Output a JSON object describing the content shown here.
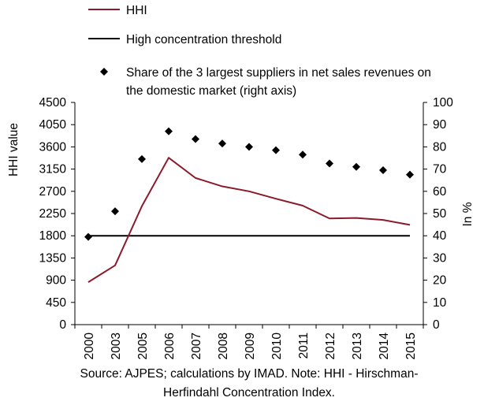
{
  "chart_data": {
    "type": "line",
    "title": "",
    "categories": [
      "2000",
      "2003",
      "2005",
      "2006",
      "2007",
      "2008",
      "2009",
      "2010",
      "2011",
      "2012",
      "2013",
      "2014",
      "2015"
    ],
    "series": [
      {
        "name": "HHI",
        "axis": "left",
        "kind": "line",
        "color": "#8b1a2b",
        "values": [
          860,
          1200,
          2400,
          3380,
          2970,
          2800,
          2700,
          2550,
          2410,
          2150,
          2160,
          2120,
          2020
        ]
      },
      {
        "name": "High concentration threshold",
        "axis": "left",
        "kind": "line",
        "color": "#000000",
        "values": [
          1800,
          1800,
          1800,
          1800,
          1800,
          1800,
          1800,
          1800,
          1800,
          1800,
          1800,
          1800,
          1800
        ]
      },
      {
        "name": "Share of the 3 largest suppliers in net sales revenues on the domestic market (right axis)",
        "name_lines": [
          "Share of the 3 largest suppliers in net sales revenues on",
          "the domestic market (right axis)"
        ],
        "axis": "right",
        "kind": "markers",
        "marker": "diamond",
        "color": "#000000",
        "values": [
          39.5,
          51,
          74.5,
          87,
          83.5,
          81.5,
          80,
          78.5,
          76.5,
          72.5,
          71,
          69.5,
          67.5
        ]
      }
    ],
    "ylabel": "HHI value",
    "y2label": "In %",
    "ylim": [
      0,
      4500
    ],
    "y2lim": [
      0,
      100
    ],
    "yticks": [
      "0",
      "450",
      "900",
      "1350",
      "1800",
      "2250",
      "2700",
      "3150",
      "3600",
      "4050",
      "4500"
    ],
    "y2ticks": [
      "0",
      "10",
      "20",
      "30",
      "40",
      "50",
      "60",
      "70",
      "80",
      "90",
      "100"
    ],
    "grid": false,
    "legend_position": "top"
  },
  "source_note": {
    "line1": "Source: AJPES; calculations by IMAD. Note: HHI - Hirschman-",
    "line2": "Herfindahl Concentration Index."
  }
}
